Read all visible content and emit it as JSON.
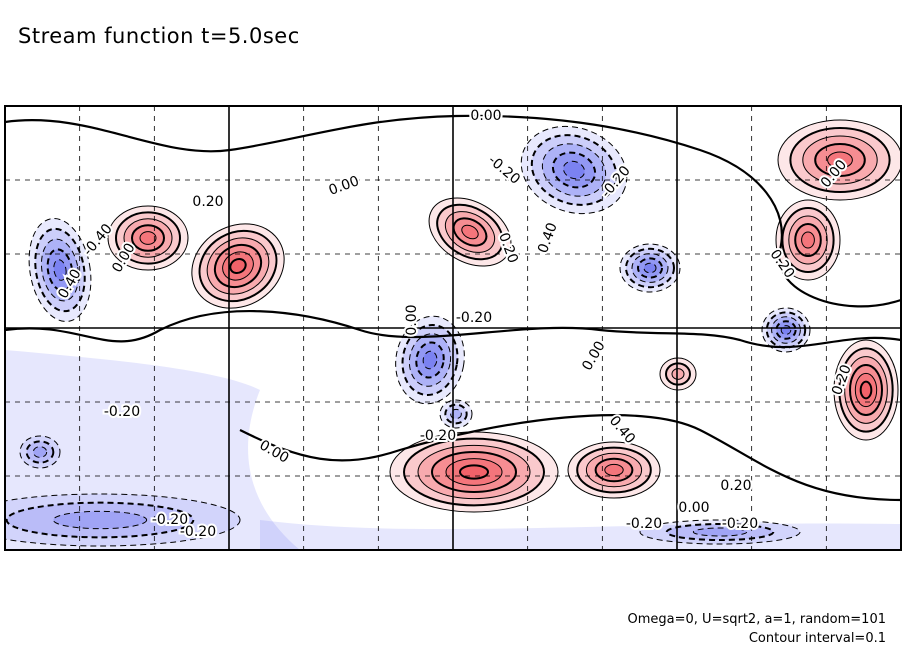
{
  "title": "Stream function t=5.0sec",
  "notes": {
    "params": "Omega=0, U=sqrt2, a=1, random=101",
    "interval": "Contour interval=0.1"
  },
  "colors": {
    "positive_fill": "#f0454c",
    "negative_fill": "#4b55ee",
    "frame": "#000000"
  },
  "chart_data": {
    "type": "heatmap",
    "field": "stream function",
    "contour_interval": 0.1,
    "grid": true,
    "grid_style": "dashed",
    "solid_gridlines_count": {
      "vertical": 2,
      "horizontal": 1
    },
    "contour_labels": [
      {
        "text": "0.00"
      },
      {
        "text": "-0.20"
      },
      {
        "text": "0.00"
      },
      {
        "text": "-0.20"
      },
      {
        "text": "0.40"
      },
      {
        "text": "0.40"
      },
      {
        "text": "-0.20"
      },
      {
        "text": "-0.20"
      },
      {
        "text": "0.20"
      },
      {
        "text": "0.00"
      },
      {
        "text": "-0.40"
      },
      {
        "text": "0.20"
      },
      {
        "text": "0.20"
      },
      {
        "text": "-0.20"
      },
      {
        "text": "0.00"
      },
      {
        "text": "0.00"
      },
      {
        "text": "-0.20"
      },
      {
        "text": "0.20"
      },
      {
        "text": "0.40"
      },
      {
        "text": "0.00"
      },
      {
        "text": "-0.20"
      },
      {
        "text": "0.20"
      },
      {
        "text": "0.00"
      },
      {
        "text": "-0.20"
      },
      {
        "text": "0.00"
      },
      {
        "text": "-0.20"
      }
    ],
    "extrema": [
      {
        "sign": "positive",
        "value": 0.55
      },
      {
        "sign": "positive",
        "value": 0.45
      },
      {
        "sign": "positive",
        "value": 0.5
      },
      {
        "sign": "positive",
        "value": 0.45
      },
      {
        "sign": "positive",
        "value": 0.45
      },
      {
        "sign": "positive",
        "value": 0.6
      },
      {
        "sign": "positive",
        "value": 0.45
      },
      {
        "sign": "positive",
        "value": 0.55
      },
      {
        "sign": "positive",
        "value": 0.35
      },
      {
        "sign": "negative",
        "value": -0.5
      },
      {
        "sign": "negative",
        "value": -0.45
      },
      {
        "sign": "negative",
        "value": -0.45
      },
      {
        "sign": "negative",
        "value": -0.5
      },
      {
        "sign": "negative",
        "value": -0.45
      },
      {
        "sign": "negative",
        "value": -0.35
      },
      {
        "sign": "negative",
        "value": -0.25
      },
      {
        "sign": "negative",
        "value": -0.3
      },
      {
        "sign": "negative",
        "value": -0.25
      }
    ]
  }
}
